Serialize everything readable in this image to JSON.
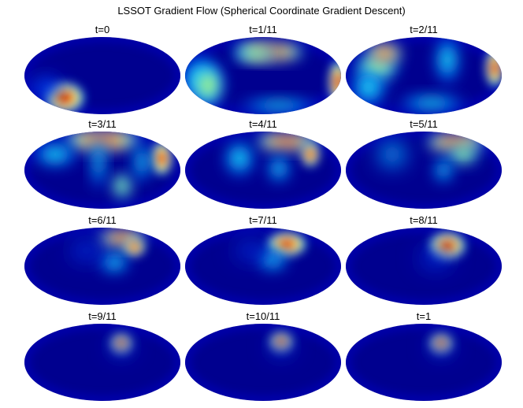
{
  "figure": {
    "title": "LSSOT Gradient Flow (Spherical Coordinate Gradient Descent)",
    "colormap": "jet",
    "colors": {
      "background": "#ffffff",
      "base": "#00008f",
      "cyan": "#33ffee",
      "yellow": "#ffff00",
      "orange": "#ff8000",
      "red": "#c00000"
    },
    "panels": [
      {
        "label": "t=0"
      },
      {
        "label": "t=1/11"
      },
      {
        "label": "t=2/11"
      },
      {
        "label": "t=3/11"
      },
      {
        "label": "t=4/11"
      },
      {
        "label": "t=5/11"
      },
      {
        "label": "t=6/11"
      },
      {
        "label": "t=7/11"
      },
      {
        "label": "t=8/11"
      },
      {
        "label": "t=9/11"
      },
      {
        "label": "t=10/11"
      },
      {
        "label": "t=1"
      }
    ]
  }
}
